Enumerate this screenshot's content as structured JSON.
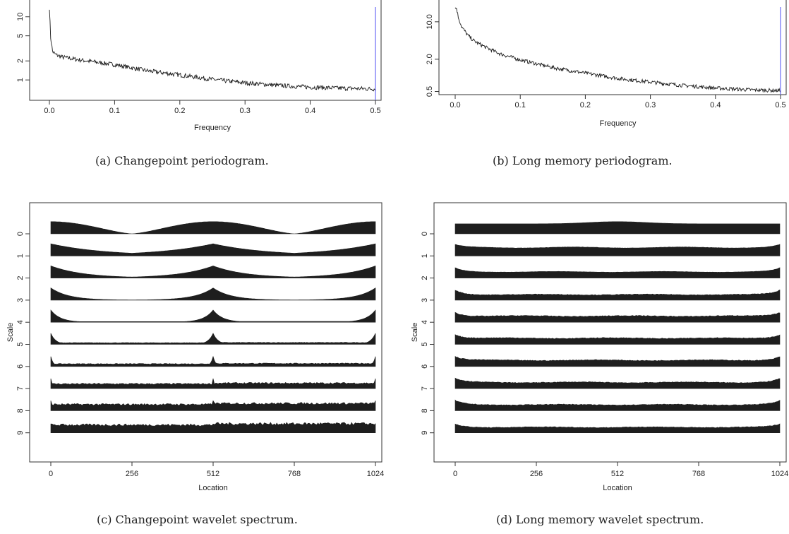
{
  "colors": {
    "axis": "#333333",
    "line": "#1a1a1a",
    "marker": "#6b6bf5",
    "fill": "#1e1e1e"
  },
  "captions": {
    "a": "(a) Changepoint periodogram.",
    "b": "(b) Long memory periodogram.",
    "c": "(c) Changepoint wavelet spectrum.",
    "d": "(d) Long memory wavelet spectrum."
  },
  "chart_data": [
    {
      "id": "a",
      "type": "line",
      "title": "",
      "xlabel": "Frequency",
      "ylabel": "",
      "x_ticks": [
        0.0,
        0.1,
        0.2,
        0.3,
        0.4,
        0.5
      ],
      "x_tick_labels": [
        "0.0",
        "0.1",
        "0.2",
        "0.3",
        "0.4",
        "0.5"
      ],
      "y_scale": "log",
      "y_ticks": [
        1,
        2,
        5,
        10
      ],
      "y_tick_labels": [
        "1",
        "2",
        "5",
        "10"
      ],
      "xlim": [
        0,
        0.5
      ],
      "ylim": [
        0.6,
        15
      ],
      "vline_x": 0.5,
      "x": [
        0.0,
        0.002,
        0.005,
        0.01,
        0.02,
        0.05,
        0.1,
        0.15,
        0.2,
        0.25,
        0.3,
        0.35,
        0.4,
        0.45,
        0.5
      ],
      "y": [
        14,
        4.5,
        2.8,
        2.5,
        2.3,
        2.05,
        1.75,
        1.4,
        1.2,
        1.02,
        0.9,
        0.82,
        0.77,
        0.74,
        0.72
      ]
    },
    {
      "id": "b",
      "type": "line",
      "title": "",
      "xlabel": "Frequency",
      "ylabel": "",
      "x_ticks": [
        0.0,
        0.1,
        0.2,
        0.3,
        0.4,
        0.5
      ],
      "x_tick_labels": [
        "0.0",
        "0.1",
        "0.2",
        "0.3",
        "0.4",
        "0.5"
      ],
      "y_scale": "log",
      "y_ticks": [
        0.5,
        2.0,
        10.0
      ],
      "y_tick_labels": [
        "0.5",
        "2.0",
        "10.0"
      ],
      "xlim": [
        0,
        0.5
      ],
      "ylim": [
        0.45,
        20
      ],
      "vline_x": 0.5,
      "x": [
        0.002,
        0.005,
        0.01,
        0.02,
        0.03,
        0.05,
        0.07,
        0.1,
        0.15,
        0.2,
        0.25,
        0.3,
        0.35,
        0.4,
        0.45,
        0.5
      ],
      "y": [
        18,
        12,
        8,
        5.5,
        4.3,
        3.2,
        2.5,
        1.95,
        1.4,
        1.1,
        0.88,
        0.75,
        0.65,
        0.58,
        0.54,
        0.52
      ]
    },
    {
      "id": "c",
      "type": "area",
      "title": "",
      "xlabel": "Location",
      "ylabel": "Scale",
      "x_ticks": [
        0,
        256,
        512,
        768,
        1024
      ],
      "x_tick_labels": [
        "0",
        "256",
        "512",
        "768",
        "1024"
      ],
      "y_ticks": [
        0,
        1,
        2,
        3,
        4,
        5,
        6,
        7,
        8,
        9
      ],
      "y_tick_labels": [
        "0",
        "1",
        "2",
        "3",
        "4",
        "5",
        "6",
        "7",
        "8",
        "9"
      ],
      "xlim": [
        0,
        1024
      ],
      "shape": "changepoint",
      "peak_heights": [
        0.55,
        0.55,
        0.55,
        0.55,
        0.55,
        0.5,
        0.45,
        0.45,
        0.45,
        0.4
      ],
      "base_heights": [
        0.0,
        0.0,
        0.0,
        0.01,
        0.03,
        0.06,
        0.1,
        0.18,
        0.24,
        0.3
      ]
    },
    {
      "id": "d",
      "type": "area",
      "title": "",
      "xlabel": "Location",
      "ylabel": "Scale",
      "x_ticks": [
        0,
        256,
        512,
        768,
        1024
      ],
      "x_tick_labels": [
        "0",
        "256",
        "512",
        "768",
        "1024"
      ],
      "y_ticks": [
        0,
        1,
        2,
        3,
        4,
        5,
        6,
        7,
        8,
        9
      ],
      "y_tick_labels": [
        "0",
        "1",
        "2",
        "3",
        "4",
        "5",
        "6",
        "7",
        "8",
        "9"
      ],
      "xlim": [
        0,
        1024
      ],
      "shape": "longmemory",
      "peak_heights": [
        0.55,
        0.5,
        0.45,
        0.45,
        0.45,
        0.45,
        0.45,
        0.45,
        0.45,
        0.4
      ],
      "base_heights": [
        0.45,
        0.38,
        0.28,
        0.25,
        0.28,
        0.28,
        0.28,
        0.28,
        0.27,
        0.25
      ]
    }
  ]
}
